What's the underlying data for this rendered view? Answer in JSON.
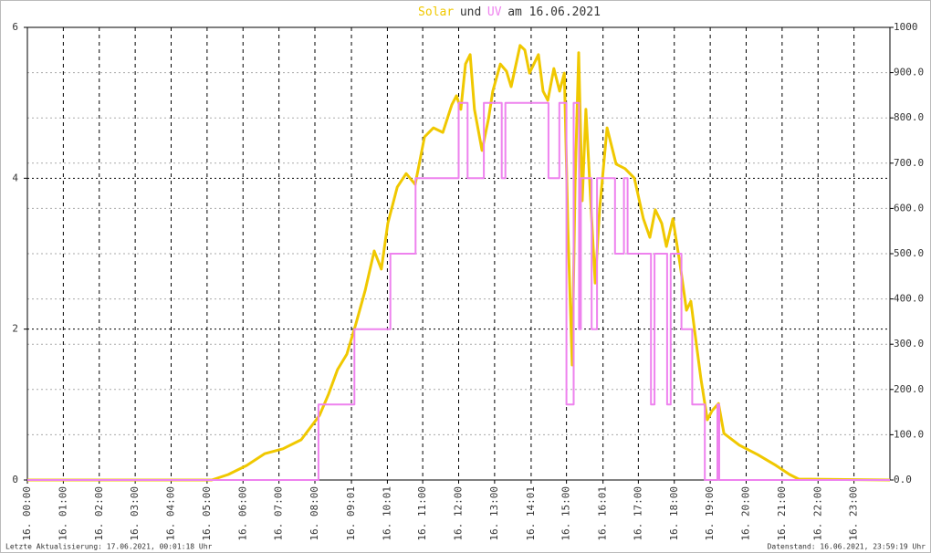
{
  "chart_data": {
    "type": "line",
    "title_join": "und",
    "title_date": "am 16.06.2021",
    "xlim": [
      0,
      24
    ],
    "xticks": [
      {
        "value": 0,
        "label": "16. 00:00"
      },
      {
        "value": 1,
        "label": "16. 01:00"
      },
      {
        "value": 2,
        "label": "16. 02:00"
      },
      {
        "value": 3,
        "label": "16. 03:00"
      },
      {
        "value": 4,
        "label": "16. 04:00"
      },
      {
        "value": 5,
        "label": "16. 05:00"
      },
      {
        "value": 6,
        "label": "16. 06:00"
      },
      {
        "value": 7,
        "label": "16. 07:00"
      },
      {
        "value": 8,
        "label": "16. 08:00"
      },
      {
        "value": 9.017,
        "label": "16. 09:01"
      },
      {
        "value": 10.017,
        "label": "16. 10:01"
      },
      {
        "value": 11,
        "label": "16. 11:00"
      },
      {
        "value": 12,
        "label": "16. 12:00"
      },
      {
        "value": 13,
        "label": "16. 13:00"
      },
      {
        "value": 14.017,
        "label": "16. 14:01"
      },
      {
        "value": 15,
        "label": "16. 15:00"
      },
      {
        "value": 16.017,
        "label": "16. 16:01"
      },
      {
        "value": 17,
        "label": "16. 17:00"
      },
      {
        "value": 18,
        "label": "16. 18:00"
      },
      {
        "value": 19,
        "label": "16. 19:00"
      },
      {
        "value": 20,
        "label": "16. 20:00"
      },
      {
        "value": 21,
        "label": "16. 21:00"
      },
      {
        "value": 22,
        "label": "16. 22:00"
      },
      {
        "value": 23,
        "label": "16. 23:00"
      }
    ],
    "ylim": [
      0,
      6
    ],
    "yticks": [
      0,
      2,
      4,
      6
    ],
    "y2lim": [
      0,
      1000
    ],
    "y2ticks": [
      {
        "value": 0,
        "label": "0.0"
      },
      {
        "value": 100,
        "label": "100.0"
      },
      {
        "value": 200,
        "label": "200.0"
      },
      {
        "value": 300,
        "label": "300.0"
      },
      {
        "value": 400,
        "label": "400.0"
      },
      {
        "value": 500,
        "label": "500.0"
      },
      {
        "value": 600,
        "label": "600.0"
      },
      {
        "value": 700,
        "label": "700.0"
      },
      {
        "value": 800,
        "label": "800.0"
      },
      {
        "value": 900,
        "label": "900.0"
      },
      1000
    ],
    "grid": true,
    "series": [
      {
        "name": "Solar",
        "color": "#f0c800",
        "axis": "y2",
        "x": [
          0,
          5.13,
          5.59,
          6.1,
          6.6,
          7.11,
          7.62,
          8.13,
          8.38,
          8.63,
          8.89,
          9.14,
          9.4,
          9.65,
          9.85,
          10.03,
          10.29,
          10.54,
          10.79,
          11.05,
          11.3,
          11.56,
          11.81,
          11.94,
          12.06,
          12.19,
          12.32,
          12.44,
          12.65,
          12.83,
          12.95,
          13.16,
          13.33,
          13.46,
          13.71,
          13.84,
          13.97,
          14.22,
          14.35,
          14.48,
          14.65,
          14.81,
          14.94,
          15.04,
          15.16,
          15.24,
          15.34,
          15.44,
          15.54,
          15.7,
          15.8,
          15.92,
          16.13,
          16.38,
          16.63,
          16.89,
          17.14,
          17.32,
          17.47,
          17.65,
          17.78,
          17.96,
          18.16,
          18.34,
          18.46,
          18.59,
          18.74,
          18.92,
          19.05,
          19.23,
          19.38,
          19.81,
          20.32,
          20.83,
          21.21,
          21.46,
          24
        ],
        "values": [
          0,
          0,
          12,
          32,
          58,
          69,
          89,
          143,
          190,
          244,
          278,
          345,
          419,
          506,
          466,
          567,
          647,
          677,
          653,
          758,
          778,
          768,
          829,
          849,
          819,
          919,
          940,
          819,
          728,
          798,
          859,
          919,
          903,
          869,
          960,
          950,
          899,
          940,
          859,
          839,
          909,
          859,
          899,
          556,
          254,
          657,
          944,
          617,
          819,
          577,
          435,
          597,
          778,
          698,
          688,
          667,
          577,
          536,
          597,
          567,
          516,
          577,
          476,
          375,
          395,
          315,
          224,
          133,
          153,
          169,
          103,
          77,
          56,
          32,
          12,
          2,
          0
        ]
      },
      {
        "name": "UV",
        "color": "#ee82ee",
        "axis": "y",
        "x": [
          0,
          8.1,
          8.1,
          9.1,
          9.1,
          10.1,
          10.1,
          10.8,
          10.8,
          12.0,
          12.0,
          12.25,
          12.25,
          12.7,
          12.7,
          13.2,
          13.2,
          13.3,
          13.3,
          14.5,
          14.5,
          14.8,
          14.8,
          15.0,
          15.0,
          15.2,
          15.2,
          15.35,
          15.35,
          15.4,
          15.4,
          15.7,
          15.7,
          15.85,
          15.85,
          16.35,
          16.35,
          16.6,
          16.6,
          16.7,
          16.7,
          17.35,
          17.35,
          17.45,
          17.45,
          17.8,
          17.8,
          17.9,
          17.9,
          18.2,
          18.2,
          18.5,
          18.5,
          18.85,
          18.85,
          19.2,
          19.2,
          19.25,
          19.25,
          24
        ],
        "values": [
          0,
          0,
          1,
          1,
          2,
          2,
          3,
          3,
          4,
          4,
          5,
          5,
          4,
          4,
          5,
          5,
          4,
          4,
          5,
          5,
          4,
          4,
          5,
          5,
          1,
          1,
          5,
          5,
          2,
          2,
          4,
          4,
          2,
          2,
          4,
          4,
          3,
          3,
          4,
          4,
          3,
          3,
          1,
          1,
          3,
          3,
          1,
          1,
          3,
          3,
          2,
          2,
          1,
          1,
          0,
          0,
          1,
          1,
          0,
          0
        ]
      }
    ],
    "footer_left": "Letzte Aktualisierung: 17.06.2021, 00:01:18 Uhr",
    "footer_right": "Datenstand: 16.06.2021, 23:59:19 Uhr"
  }
}
